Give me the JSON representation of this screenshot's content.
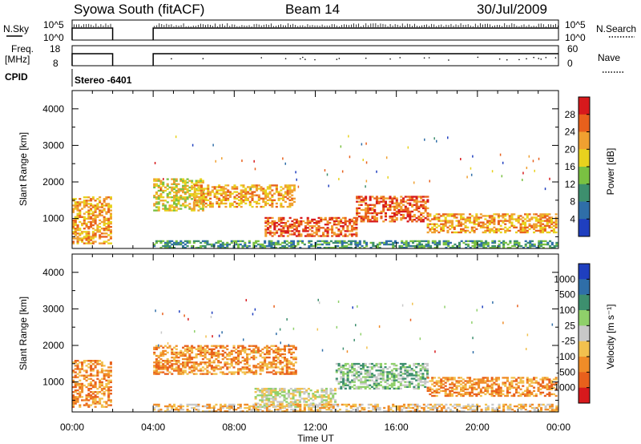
{
  "header": {
    "station": "Syowa South (fitACF)",
    "beam": "Beam 14",
    "date": "30/Jul/2009"
  },
  "side_labels": {
    "nsky": "N.Sky",
    "freq_line1": "Freq.",
    "freq_line2": "[MHz]",
    "cpid": "CPID",
    "nsearch": "N.Search",
    "nave": "Nave"
  },
  "cpid_value": "Stereo -6401",
  "noise_axis": {
    "left_ticks": [
      "10^5",
      "10^0"
    ],
    "right_ticks": [
      "10^5",
      "10^0"
    ]
  },
  "freq_axis": {
    "left_ticks": [
      "18",
      "8"
    ],
    "right_ticks": [
      "60",
      "0"
    ]
  },
  "colors": {
    "power": [
      "#1f3fbf",
      "#2f6ea8",
      "#3d8f6e",
      "#7ac142",
      "#e8d21e",
      "#f0a030",
      "#e8601c",
      "#d7191c"
    ],
    "velocity": [
      "#1f3fbf",
      "#2f6ea8",
      "#3d8f6e",
      "#8fd06a",
      "#c8c8c8",
      "#f2c14e",
      "#f08c28",
      "#e8601c",
      "#d7191c"
    ]
  },
  "chart_data": [
    {
      "type": "heatmap",
      "name": "power",
      "ylabel": "Slant Range [km]",
      "yticks": [
        "4000",
        "3000",
        "2000",
        "1000"
      ],
      "xlabel": "Time UT",
      "xticks": [
        "00:00",
        "04:00",
        "08:00",
        "12:00",
        "16:00",
        "20:00",
        "00:00"
      ],
      "colorbar_label": "Power [dB]",
      "colorbar_ticks": [
        "28",
        "24",
        "20",
        "16",
        "12",
        "8",
        "4"
      ],
      "x_range_hours": [
        0,
        24
      ],
      "y_range_km": [
        180,
        4500
      ],
      "data_gaps_hours": [
        [
          2.0,
          4.0
        ]
      ],
      "echo_regions": [
        {
          "t0": 0.0,
          "t1": 1.9,
          "r0": 300,
          "r1": 1600,
          "level": 2
        },
        {
          "t0": 4.0,
          "t1": 6.5,
          "r0": 1200,
          "r1": 2100,
          "level": 3
        },
        {
          "t0": 6.0,
          "t1": 11.0,
          "r0": 1300,
          "r1": 1900,
          "level": 2
        },
        {
          "t0": 9.5,
          "t1": 14.0,
          "r0": 500,
          "r1": 1000,
          "level": 1
        },
        {
          "t0": 14.0,
          "t1": 17.5,
          "r0": 900,
          "r1": 1600,
          "level": 1
        },
        {
          "t0": 17.5,
          "t1": 23.9,
          "r0": 600,
          "r1": 1100,
          "level": 2
        },
        {
          "t0": 4.0,
          "t1": 23.9,
          "r0": 180,
          "r1": 400,
          "level": 5
        }
      ]
    },
    {
      "type": "heatmap",
      "name": "velocity",
      "ylabel": "Slant Range [km]",
      "yticks": [
        "4000",
        "3000",
        "2000",
        "1000"
      ],
      "xlabel": "Time UT",
      "xticks": [
        "00:00",
        "04:00",
        "08:00",
        "12:00",
        "16:00",
        "20:00",
        "00:00"
      ],
      "colorbar_label": "Velocity [m s⁻¹]",
      "colorbar_ticks": [
        "1000",
        "500",
        "100",
        "25",
        "-25",
        "-100",
        "-500",
        "-1000"
      ],
      "x_range_hours": [
        0,
        24
      ],
      "y_range_km": [
        180,
        4500
      ],
      "data_gaps_hours": [
        [
          2.0,
          4.0
        ]
      ],
      "echo_regions": [
        {
          "t0": 0.0,
          "t1": 1.9,
          "r0": 300,
          "r1": 1600,
          "level": 6
        },
        {
          "t0": 4.0,
          "t1": 11.0,
          "r0": 1200,
          "r1": 2000,
          "level": 6
        },
        {
          "t0": 9.0,
          "t1": 13.0,
          "r0": 300,
          "r1": 800,
          "level": 4
        },
        {
          "t0": 13.0,
          "t1": 17.5,
          "r0": 800,
          "r1": 1500,
          "level": 3
        },
        {
          "t0": 17.5,
          "t1": 23.9,
          "r0": 600,
          "r1": 1100,
          "level": 6
        },
        {
          "t0": 4.0,
          "t1": 23.9,
          "r0": 180,
          "r1": 400,
          "level": 5
        }
      ]
    }
  ]
}
